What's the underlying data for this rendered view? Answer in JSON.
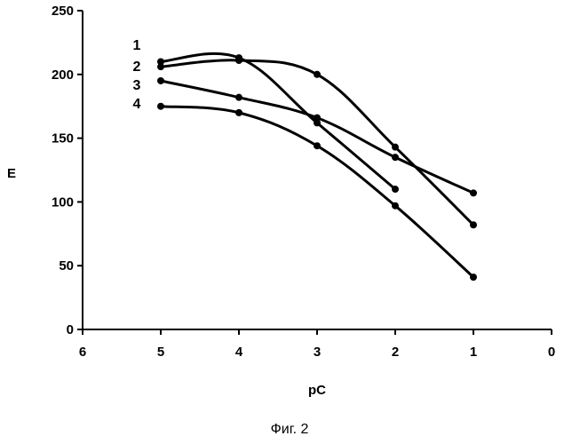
{
  "chart_data": {
    "type": "line",
    "title": "",
    "xlabel": "pC",
    "ylabel": "E",
    "xlim": [
      6,
      0
    ],
    "ylim": [
      0,
      250
    ],
    "x_reversed": true,
    "xticks": [
      6,
      5,
      4,
      3,
      2,
      1,
      0
    ],
    "yticks": [
      0,
      50,
      100,
      150,
      200,
      250
    ],
    "grid": false,
    "series": [
      {
        "name": "1",
        "x": [
          5,
          4,
          3,
          2
        ],
        "y": [
          210,
          213,
          162,
          110
        ]
      },
      {
        "name": "2",
        "x": [
          5,
          4,
          3,
          2,
          1
        ],
        "y": [
          206,
          211,
          200,
          143,
          82
        ]
      },
      {
        "name": "3",
        "x": [
          5,
          4,
          3,
          2,
          1
        ],
        "y": [
          195,
          182,
          166,
          135,
          107
        ]
      },
      {
        "name": "4",
        "x": [
          5,
          4,
          3,
          2,
          1
        ],
        "y": [
          175,
          170,
          144,
          97,
          41
        ]
      }
    ]
  },
  "caption": "Фиг. 2"
}
